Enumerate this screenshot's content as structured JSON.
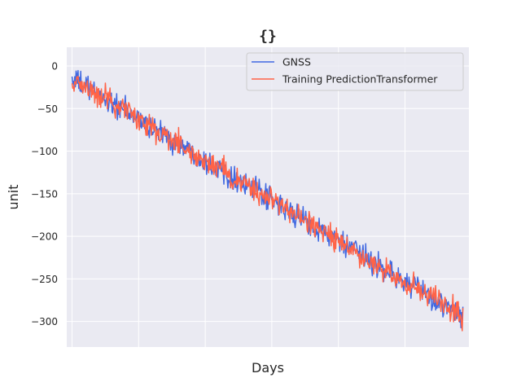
{
  "chart_data": {
    "type": "line",
    "title": "{}",
    "xlabel": "Days",
    "ylabel": "unit",
    "ylim": [
      -330,
      22
    ],
    "xlim": [
      -8,
      596
    ],
    "yticks": [
      0,
      -50,
      -100,
      -150,
      -200,
      -250,
      -300
    ],
    "ytick_labels": [
      "0",
      "−50",
      "−100",
      "−150",
      "−200",
      "−250",
      "−300"
    ],
    "xticks": [
      0,
      100,
      200,
      300,
      400,
      500,
      600
    ],
    "xtick_labels": [
      "",
      "",
      "",
      "",
      "",
      "",
      ""
    ],
    "grid": true,
    "legend_position": "top-right",
    "n_points": 588,
    "series": [
      {
        "name": "GNSS",
        "color": "#4169e1",
        "trend": {
          "start": -15,
          "end": -295
        },
        "noise_amplitude": 12
      },
      {
        "name": "Training PredictionTransformer",
        "color": "#ff6347",
        "trend": {
          "start": -15,
          "end": -295
        },
        "noise_amplitude": 12
      }
    ]
  }
}
